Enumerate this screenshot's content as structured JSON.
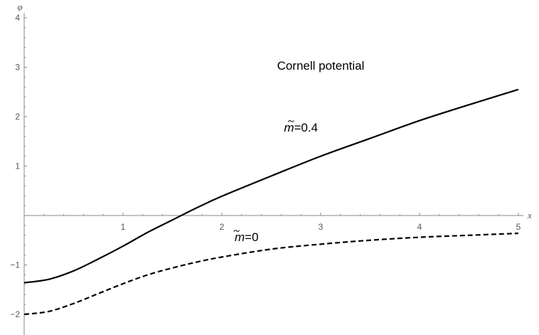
{
  "chart_data": {
    "type": "line",
    "title": "",
    "xlabel": "x",
    "ylabel": "φ",
    "xlim": [
      0,
      5
    ],
    "ylim": [
      -2.15,
      4
    ],
    "x_ticks": [
      1,
      2,
      3,
      4,
      5
    ],
    "y_ticks": [
      -2,
      -1,
      1,
      2,
      3,
      4
    ],
    "grid": false,
    "series": [
      {
        "name": "m̃=0.4",
        "style": "solid",
        "color": "#000000",
        "x": [
          0,
          0.25,
          0.5,
          0.75,
          1.0,
          1.25,
          1.5,
          1.75,
          2.0,
          2.5,
          3.0,
          3.5,
          4.0,
          4.5,
          5.0
        ],
        "y": [
          -1.36,
          -1.29,
          -1.12,
          -0.88,
          -0.62,
          -0.34,
          -0.09,
          0.16,
          0.39,
          0.8,
          1.2,
          1.56,
          1.92,
          2.24,
          2.55
        ]
      },
      {
        "name": "m̃=0",
        "style": "dashed",
        "color": "#000000",
        "x": [
          0,
          0.25,
          0.5,
          0.75,
          1.0,
          1.25,
          1.5,
          1.75,
          2.0,
          2.5,
          3.0,
          3.5,
          4.0,
          4.5,
          5.0
        ],
        "y": [
          -2.0,
          -1.94,
          -1.78,
          -1.58,
          -1.38,
          -1.2,
          -1.06,
          -0.94,
          -0.84,
          -0.68,
          -0.58,
          -0.5,
          -0.44,
          -0.4,
          -0.36
        ]
      }
    ],
    "annotations": [
      {
        "text": "Cornell potential",
        "x": 3.0,
        "y": 2.95
      },
      {
        "text_prefix": "m",
        "text_suffix": "=0.4",
        "x": 2.8,
        "y": 1.7
      },
      {
        "text_prefix": "m",
        "text_suffix": "=0",
        "x": 2.25,
        "y": -0.52
      }
    ]
  }
}
